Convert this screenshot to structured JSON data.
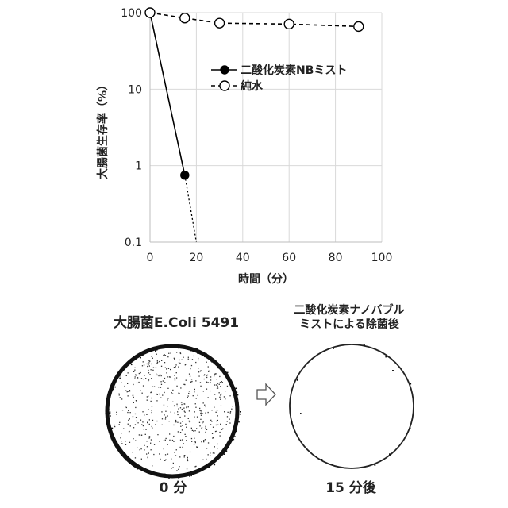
{
  "chart_data": {
    "type": "line",
    "xlabel": "時間（分）",
    "ylabel": "大腸菌生存率（%）",
    "xlim": [
      0,
      100
    ],
    "ylim": [
      0.1,
      100
    ],
    "yscale": "log",
    "x_ticks": [
      "0",
      "20",
      "40",
      "60",
      "80",
      "100"
    ],
    "y_ticks": [
      "0.1",
      "1",
      "10",
      "100"
    ],
    "grid": true,
    "legend_position": "upper-right",
    "series": [
      {
        "name": "二酸化炭素NBミスト",
        "marker": "filled-circle",
        "line": "solid",
        "color": "#000000",
        "points": [
          {
            "x": 0,
            "y": 100
          },
          {
            "x": 15,
            "y": 0.75
          }
        ],
        "extrapolation": {
          "line": "dotted",
          "to": {
            "x": 20,
            "y": 0.1
          }
        }
      },
      {
        "name": "純水",
        "marker": "open-circle",
        "line": "dashed",
        "color": "#000000",
        "points": [
          {
            "x": 0,
            "y": 100
          },
          {
            "x": 15,
            "y": 85
          },
          {
            "x": 30,
            "y": 73
          },
          {
            "x": 60,
            "y": 71
          },
          {
            "x": 90,
            "y": 66
          }
        ]
      }
    ]
  },
  "dishes": {
    "left_title": "大腸菌E.Coli 5491",
    "right_title_line1": "二酸化炭素ナノバブル",
    "right_title_line2": "ミストによる除菌後",
    "left_label": "0 分",
    "right_label": "15 分後",
    "arrow_icon": "outline-right-arrow-icon"
  }
}
